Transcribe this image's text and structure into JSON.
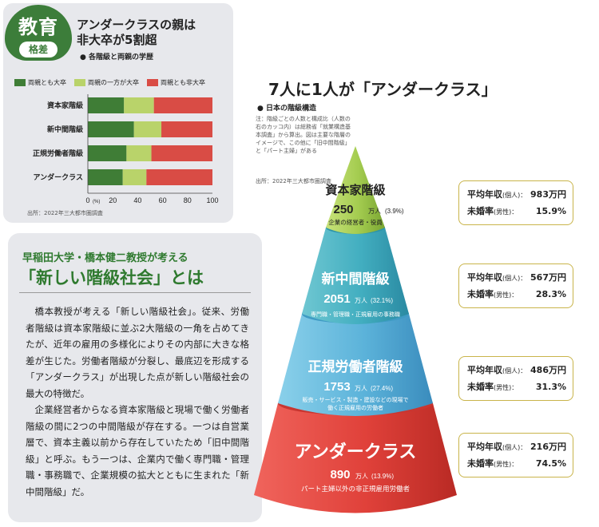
{
  "badge": {
    "main": "教育",
    "sub": "格差"
  },
  "chart_panel": {
    "title_line1": "アンダークラスの親は",
    "title_line2": "非大卒が5割超",
    "subtitle": "● 各階級と両親の学歴",
    "source": "出所：2022年三大都市圏調査"
  },
  "chart_data": {
    "type": "bar",
    "orientation": "horizontal",
    "stacked": true,
    "categories": [
      "資本家階級",
      "新中間階級",
      "正規労働者階級",
      "アンダークラス"
    ],
    "series": [
      {
        "name": "両親とも大卒",
        "values": [
          29,
          37,
          31,
          28
        ],
        "color": "#3f7d36"
      },
      {
        "name": "両親の一方が大卒",
        "values": [
          24,
          22,
          20,
          19
        ],
        "color": "#b9d36a"
      },
      {
        "name": "両親とも非大卒",
        "values": [
          47,
          41,
          49,
          53
        ],
        "color": "#d94c45"
      }
    ],
    "xlim": [
      0,
      100
    ],
    "xticks": [
      "0",
      "20",
      "40",
      "60",
      "80",
      "100"
    ],
    "xunit": "(%)",
    "grid": false,
    "legend": "top"
  },
  "essay": {
    "heading": "早稲田大学・橋本健二教授が考える",
    "title": "「新しい階級社会」とは",
    "paragraphs": [
      "橋本教授が考える「新しい階級社会」。従来、労働者階級は資本家階級に並ぶ2大階級の一角を占めてきたが、近年の雇用の多様化によりその内部に大きな格差が生じた。労働者階級が分裂し、最底辺を形成する「アンダークラス」が出現した点が新しい階級社会の最大の特徴だ。",
      "企業経営者からなる資本家階級と現場で働く労働者階級の間に2つの中間階級が存在する。一つは自営業層で、資本主義以前から存在していたため「旧中間階級」と呼ぶ。もう一つは、企業内で働く専門職・管理職・事務職で、企業規模の拡大とともに生まれた「新中間階級」だ。"
    ]
  },
  "pyramid_panel": {
    "title": "7人に1人が「アンダークラス」",
    "subtitle": "● 日本の階級構造",
    "note": "注：階級ごとの人数と構成比（人数の右のカッコ内）は総務省「就業構造基本調査」から算出。図は主要な階層のイメージで、この他に「旧中間階級」と「パート主婦」がある",
    "source": "出所：2022年三大都市圏調査",
    "tiers": [
      {
        "name": "資本家階級",
        "count": "250",
        "unit": "万人",
        "share": "(3.9%)",
        "desc": "企業の経営者・役員",
        "income": "983万円",
        "unmarried": "15.9%"
      },
      {
        "name": "新中間階級",
        "count": "2051",
        "unit": "万人",
        "share": "(32.1%)",
        "desc": "専門職・管理職・正規雇用の事務職",
        "income": "567万円",
        "unmarried": "28.3%"
      },
      {
        "name": "正規労働者階級",
        "count": "1753",
        "unit": "万人",
        "share": "(27.4%)",
        "desc1": "販売・サービス・製造・建設などの現場で",
        "desc2": "働く正規雇用の労働者",
        "income": "486万円",
        "unmarried": "31.3%"
      },
      {
        "name": "アンダークラス",
        "count": "890",
        "unit": "万人",
        "share": "(13.9%)",
        "desc": "パート主婦以外の非正規雇用労働者",
        "income": "216万円",
        "unmarried": "74.5%"
      }
    ],
    "income_label": "平均年収",
    "income_sub": "(個人)：",
    "unmarried_label": "未婚率",
    "unmarried_sub": "(男性)：",
    "colors": {
      "top": "#a9cf55",
      "second": "#4ab3c8",
      "third": "#5ab0d8",
      "bottom": "#e0413a"
    }
  }
}
